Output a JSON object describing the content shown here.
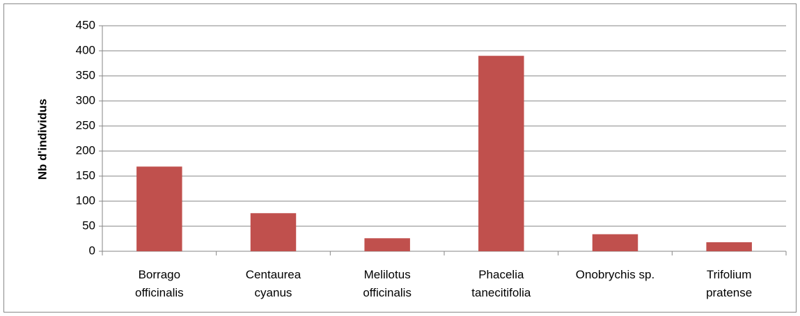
{
  "chart_data": {
    "type": "bar",
    "y_label": "Nb d'individus",
    "categories": [
      "Borrago\nofficinalis",
      "Centaurea\ncyanus",
      "Melilotus\nofficinalis",
      "Phacelia\ntanecitifolia",
      "Onobrychis sp.",
      "Trifolium\npratense"
    ],
    "values": [
      169,
      76,
      26,
      390,
      34,
      18
    ],
    "color": "#c0504d",
    "ylim": [
      0,
      450
    ],
    "yticks": [
      0,
      50,
      100,
      150,
      200,
      250,
      300,
      350,
      400,
      450
    ],
    "grid": true
  }
}
